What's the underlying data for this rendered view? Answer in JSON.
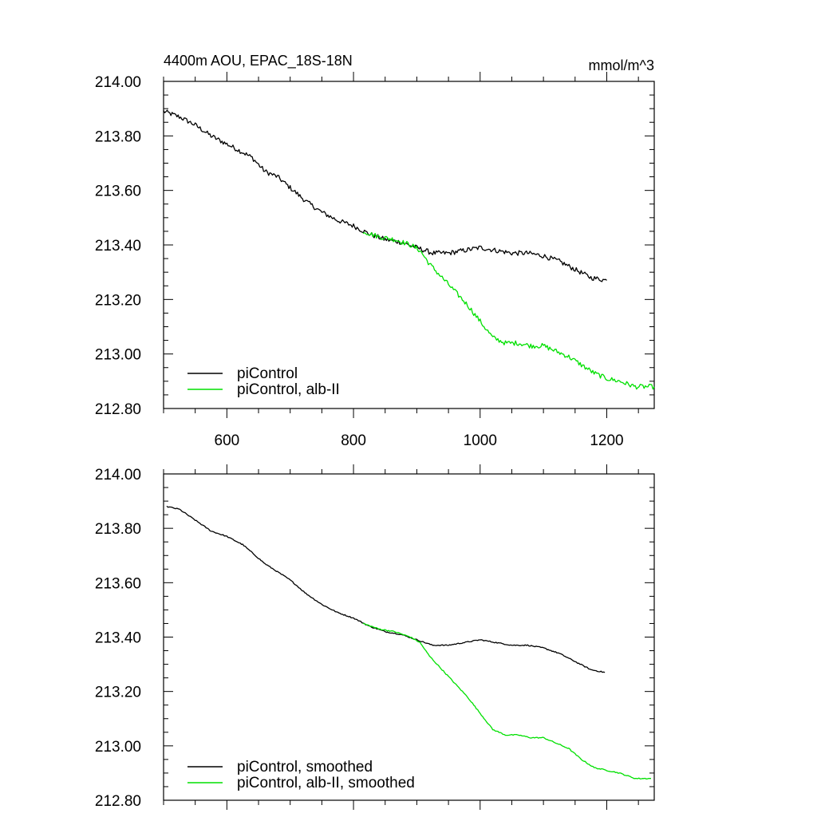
{
  "chart_data": [
    {
      "type": "line",
      "title": "4400m AOU, EPAC_18S-18N",
      "units": "mmol/m^3",
      "xlim": [
        500,
        1275
      ],
      "ylim": [
        212.8,
        214.0
      ],
      "x_ticks": [
        600,
        800,
        1000,
        1200
      ],
      "x_tick_labels": [
        "600",
        "800",
        "1000",
        "1200"
      ],
      "y_ticks": [
        212.8,
        213.0,
        213.2,
        213.4,
        213.6,
        213.8,
        214.0
      ],
      "y_tick_labels": [
        "212.80",
        "213.00",
        "213.20",
        "213.40",
        "213.60",
        "213.80",
        "214.00"
      ],
      "grid": false,
      "legend_position": "bottom-left",
      "series": [
        {
          "name": "piControl",
          "color": "#000000",
          "noisy": true,
          "x": [
            500,
            525,
            550,
            575,
            600,
            625,
            640,
            660,
            680,
            700,
            725,
            750,
            775,
            800,
            825,
            850,
            875,
            900,
            925,
            950,
            975,
            1000,
            1025,
            1050,
            1075,
            1100,
            1125,
            1150,
            1175,
            1200
          ],
          "y": [
            213.89,
            213.87,
            213.84,
            213.8,
            213.77,
            213.74,
            213.72,
            213.67,
            213.65,
            213.61,
            213.56,
            213.52,
            213.49,
            213.47,
            213.44,
            213.42,
            213.41,
            213.39,
            213.37,
            213.37,
            213.38,
            213.39,
            213.38,
            213.37,
            213.37,
            213.36,
            213.34,
            213.31,
            213.28,
            213.27
          ]
        },
        {
          "name": "piControl, alb-II",
          "color": "#00e000",
          "noisy": true,
          "x": [
            815,
            840,
            865,
            890,
            905,
            920,
            940,
            960,
            980,
            1000,
            1020,
            1040,
            1060,
            1080,
            1100,
            1120,
            1140,
            1160,
            1180,
            1200,
            1220,
            1245,
            1275
          ],
          "y": [
            213.45,
            213.43,
            213.42,
            213.4,
            213.38,
            213.33,
            213.28,
            213.23,
            213.18,
            213.12,
            213.06,
            213.04,
            213.04,
            213.03,
            213.03,
            213.01,
            212.99,
            212.96,
            212.93,
            212.91,
            212.9,
            212.88,
            212.88
          ]
        }
      ]
    },
    {
      "type": "line",
      "title": "",
      "xlim": [
        500,
        1275
      ],
      "ylim": [
        212.8,
        214.0
      ],
      "x_ticks": [
        600,
        800,
        1000,
        1200
      ],
      "y_ticks": [
        212.8,
        213.0,
        213.2,
        213.4,
        213.6,
        213.8,
        214.0
      ],
      "y_tick_labels": [
        "212.80",
        "213.00",
        "213.20",
        "213.40",
        "213.60",
        "213.80",
        "214.00"
      ],
      "grid": false,
      "legend_position": "bottom-left",
      "series": [
        {
          "name": "piControl, smoothed",
          "color": "#000000",
          "noisy": false,
          "x": [
            505,
            525,
            550,
            575,
            600,
            625,
            640,
            660,
            680,
            700,
            725,
            750,
            775,
            800,
            825,
            850,
            875,
            900,
            925,
            950,
            975,
            1000,
            1025,
            1050,
            1075,
            1100,
            1125,
            1150,
            1175,
            1197
          ],
          "y": [
            213.88,
            213.87,
            213.83,
            213.79,
            213.77,
            213.74,
            213.71,
            213.67,
            213.64,
            213.61,
            213.56,
            213.52,
            213.49,
            213.47,
            213.44,
            213.42,
            213.41,
            213.39,
            213.37,
            213.37,
            213.38,
            213.39,
            213.38,
            213.37,
            213.37,
            213.36,
            213.34,
            213.31,
            213.28,
            213.27
          ]
        },
        {
          "name": "piControl, alb-II, smoothed",
          "color": "#00e000",
          "noisy": false,
          "x": [
            815,
            840,
            865,
            890,
            905,
            920,
            940,
            960,
            980,
            1000,
            1020,
            1040,
            1060,
            1080,
            1100,
            1120,
            1140,
            1160,
            1180,
            1200,
            1220,
            1245,
            1270
          ],
          "y": [
            213.45,
            213.43,
            213.42,
            213.4,
            213.38,
            213.33,
            213.28,
            213.23,
            213.18,
            213.12,
            213.06,
            213.04,
            213.04,
            213.03,
            213.03,
            213.01,
            212.99,
            212.95,
            212.92,
            212.91,
            212.9,
            212.88,
            212.88
          ]
        }
      ]
    }
  ]
}
